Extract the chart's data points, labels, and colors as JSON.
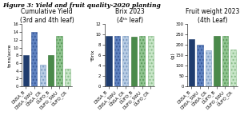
{
  "title": "Figure 3: Yield and fruit quality-2020 planting",
  "subplots": [
    {
      "title": "Cumulative Yield\n(3rd and 4th leaf)",
      "ylabel": "tons/acre",
      "ylim": [
        0,
        16
      ],
      "yticks": [
        0,
        2,
        4,
        6,
        8,
        10,
        12,
        14,
        16
      ],
      "values": [
        8.0,
        14.0,
        5.5,
        8.0,
        13.0,
        4.5
      ]
    },
    {
      "title": "Brix 2023\n(4ᵗʰ leaf)",
      "ylabel": "°Brix",
      "ylim": [
        0,
        12
      ],
      "yticks": [
        0,
        2,
        4,
        6,
        8,
        10,
        12
      ],
      "values": [
        9.8,
        9.8,
        9.8,
        9.6,
        9.8,
        9.8
      ]
    },
    {
      "title": "Fruit weight 2023\n(4th Leaf)",
      "ylabel": "(g)",
      "ylim": [
        0,
        300
      ],
      "yticks": [
        0,
        50,
        100,
        150,
        200,
        250,
        300
      ],
      "values": [
        230,
        200,
        175,
        245,
        245,
        178
      ]
    }
  ],
  "categories": [
    "DNSA_B",
    "DNSA_SWU",
    "DNSA_CR",
    "DUFO_B",
    "DUFO_SWU",
    "DUFO_CR"
  ],
  "bar_styles": [
    {
      "color": "#1f3c6e",
      "hatch": ""
    },
    {
      "color": "#5f82c0",
      "hatch": "...."
    },
    {
      "color": "#b8cce4",
      "hatch": "...."
    },
    {
      "color": "#4a8a4a",
      "hatch": ""
    },
    {
      "color": "#90c490",
      "hatch": "...."
    },
    {
      "color": "#c8e6c8",
      "hatch": "...."
    }
  ],
  "bar_edge_colors": [
    "#1f3c6e",
    "#3a5a9a",
    "#7a9ac0",
    "#2e6e2e",
    "#5a9a5a",
    "#88bb88"
  ],
  "figure_bg": "#ffffff",
  "title_fontsize": 5.5,
  "subplot_title_fontsize": 5.5,
  "tick_fontsize": 3.8,
  "ylabel_fontsize": 4.5
}
